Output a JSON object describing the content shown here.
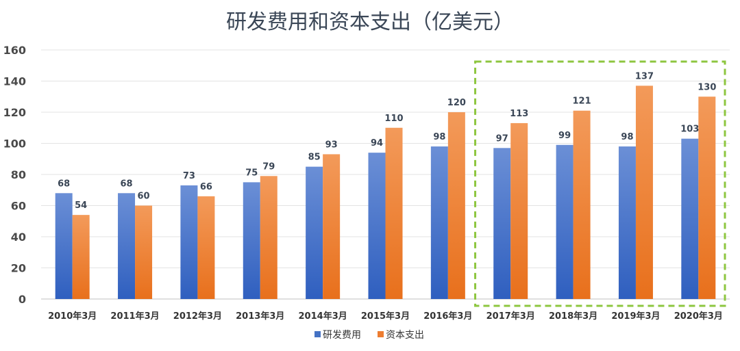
{
  "chart_data": {
    "type": "bar",
    "title": "研发费用和资本支出（亿美元）",
    "categories": [
      "2010年3月",
      "2011年3月",
      "2012年3月",
      "2013年3月",
      "2014年3月",
      "2015年3月",
      "2016年3月",
      "2017年3月",
      "2018年3月",
      "2019年3月",
      "2020年3月"
    ],
    "series": [
      {
        "name": "研发费用",
        "values": [
          68,
          68,
          73,
          75,
          85,
          94,
          98,
          97,
          99,
          98,
          103
        ],
        "color": "#4472c4"
      },
      {
        "name": "资本支出",
        "values": [
          54,
          60,
          66,
          79,
          93,
          110,
          120,
          113,
          121,
          137,
          130
        ],
        "color": "#ed7d31"
      }
    ],
    "ylim": [
      0,
      160
    ],
    "yticks": [
      0,
      20,
      40,
      60,
      80,
      100,
      120,
      140,
      160
    ],
    "grid": true,
    "legend_position": "bottom",
    "highlight": {
      "from_category": "2017年3月",
      "to_category": "2020年3月",
      "style": "dashed",
      "color": "#8dc63f"
    }
  }
}
